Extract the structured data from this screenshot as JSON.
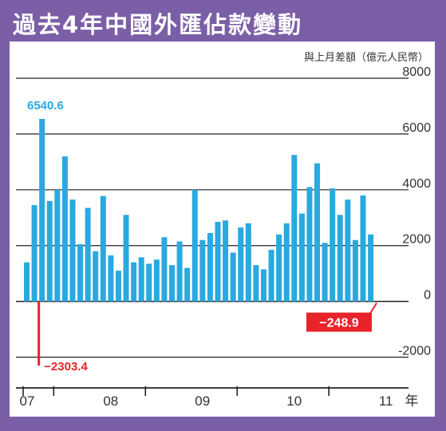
{
  "colors": {
    "frame": "#7b5fa6",
    "bar": "#29a9df",
    "negative_bar": "#e8232a",
    "negative_label_bg": "#e8232a",
    "positive_label_text": "#29a9df",
    "grid": "#222222",
    "text": "#333333"
  },
  "chart_data": {
    "type": "bar",
    "title": "過去4年中國外匯佔款變動",
    "ylabel": "與上月差額（億元人民幣）",
    "xlabel": "",
    "x_unit_label": "年",
    "ylim": [
      -2500,
      8000
    ],
    "yticks": [
      8000,
      6000,
      4000,
      2000,
      0,
      -2000
    ],
    "ytick_labels": [
      "8000",
      "6000",
      "4000",
      "2000",
      "0",
      "-2000"
    ],
    "grid": "horizontal",
    "year_labels": [
      "07",
      "08",
      "09",
      "10",
      "11"
    ],
    "year_start_index": [
      0,
      4,
      16,
      28,
      40
    ],
    "values": [
      1400,
      3450,
      6540.6,
      3600,
      4000,
      5200,
      3650,
      2050,
      3350,
      1800,
      3780,
      1650,
      1100,
      3100,
      1400,
      1580,
      1350,
      1500,
      2300,
      1300,
      2150,
      1200,
      4000,
      2200,
      2450,
      2850,
      2900,
      1750,
      2650,
      2800,
      1300,
      1150,
      1850,
      2400,
      2800,
      5250,
      3150,
      4100,
      4950,
      2100,
      4050,
      3100,
      3650,
      2200,
      3800,
      2400
    ],
    "negative_bars": [
      {
        "after_index": 2,
        "value": -2303.4
      }
    ],
    "annotations": [
      {
        "text": "6540.6",
        "kind": "positive"
      },
      {
        "text": "−2303.4",
        "kind": "negative"
      },
      {
        "text": "−248.9",
        "kind": "negative-box"
      }
    ],
    "end_value": -248.9
  }
}
